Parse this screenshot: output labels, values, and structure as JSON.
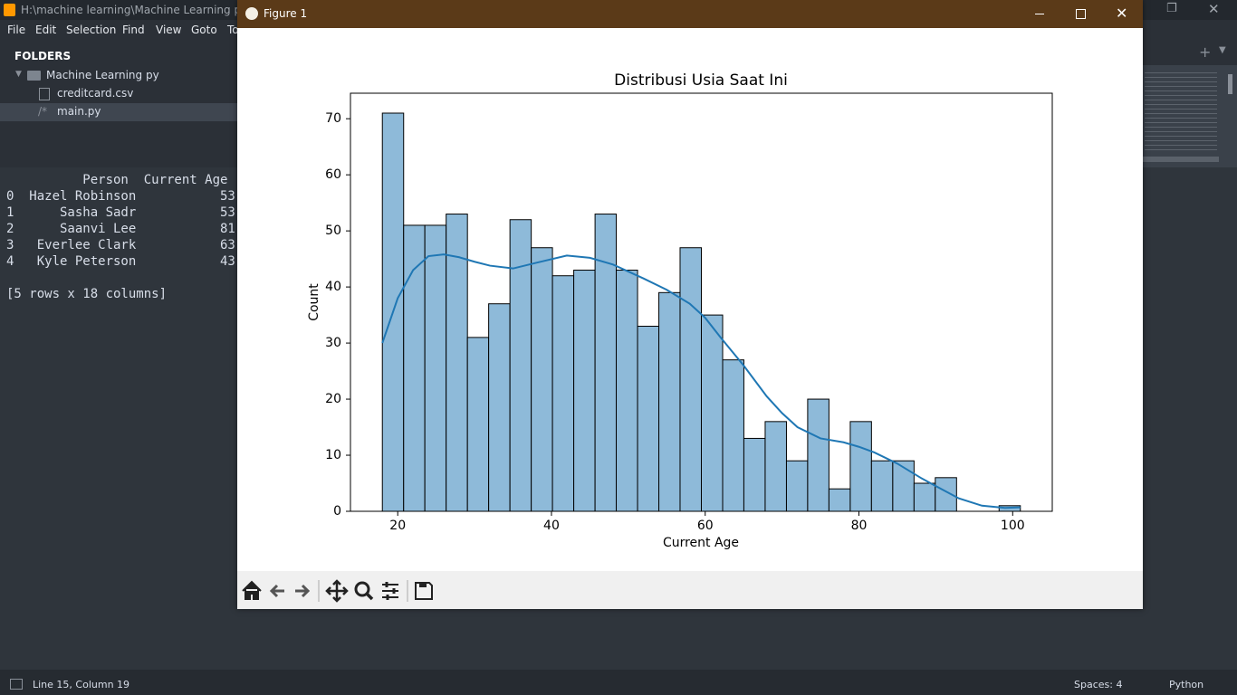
{
  "editor": {
    "title": "H:\\machine learning\\Machine Learning py\\m",
    "menu": [
      "File",
      "Edit",
      "Selection",
      "Find",
      "View",
      "Goto",
      "Tools"
    ],
    "sidebar": {
      "heading": "FOLDERS",
      "folder": "Machine Learning py",
      "files": [
        "creditcard.csv",
        "main.py"
      ]
    },
    "console": [
      "          Person  Current Age",
      "0  Hazel Robinson           53",
      "1      Sasha Sadr           53",
      "2      Saanvi Lee           81",
      "3   Everlee Clark           63",
      "4   Kyle Peterson           43",
      "",
      "[5 rows x 18 columns]"
    ],
    "status": {
      "position": "Line 15, Column 19",
      "indent": "Spaces: 4",
      "syntax": "Python"
    }
  },
  "figure": {
    "title": "Figure 1"
  },
  "chart_data": {
    "type": "histogram",
    "title": "Distribusi Usia Saat Ini",
    "xlabel": "Current Age",
    "ylabel": "Count",
    "bins": [
      18,
      20.77,
      23.53,
      26.3,
      29.07,
      31.83,
      34.6,
      37.37,
      40.13,
      42.9,
      45.67,
      48.43,
      51.2,
      53.97,
      56.73,
      59.5,
      62.27,
      65.03,
      67.8,
      70.57,
      73.33,
      76.1,
      78.87,
      81.63,
      84.4,
      87.17,
      89.93,
      92.7,
      95.47,
      98.23,
      101
    ],
    "counts": [
      71,
      51,
      51,
      53,
      31,
      37,
      52,
      47,
      42,
      43,
      53,
      43,
      33,
      39,
      47,
      35,
      27,
      13,
      16,
      9,
      20,
      4,
      16,
      9,
      9,
      5,
      6,
      0,
      0,
      1
    ],
    "color": "#8ebad9",
    "edgecolor": "#000000",
    "kde": {
      "color": "#1f77b4",
      "x": [
        18,
        20,
        22,
        24,
        26,
        28,
        30,
        32,
        35,
        38,
        42,
        45,
        48,
        52,
        55,
        58,
        60,
        62,
        65,
        68,
        70,
        72,
        75,
        78,
        80,
        82,
        85,
        88,
        90,
        93,
        96,
        99,
        101
      ],
      "y": [
        30,
        38,
        43,
        45.5,
        45.8,
        45.3,
        44.5,
        43.8,
        43.3,
        44.3,
        45.6,
        45.2,
        44,
        41.5,
        39.5,
        37,
        34.5,
        31,
        26,
        20.5,
        17.5,
        15,
        13,
        12.3,
        11.5,
        10.5,
        8.5,
        6,
        4.5,
        2.3,
        1,
        0.6,
        0.7
      ]
    },
    "xlim": [
      13.85,
      105.15
    ],
    "ylim": [
      0,
      74.55
    ],
    "xticks": [
      20,
      40,
      60,
      80,
      100
    ],
    "yticks": [
      0,
      10,
      20,
      30,
      40,
      50,
      60,
      70
    ]
  }
}
